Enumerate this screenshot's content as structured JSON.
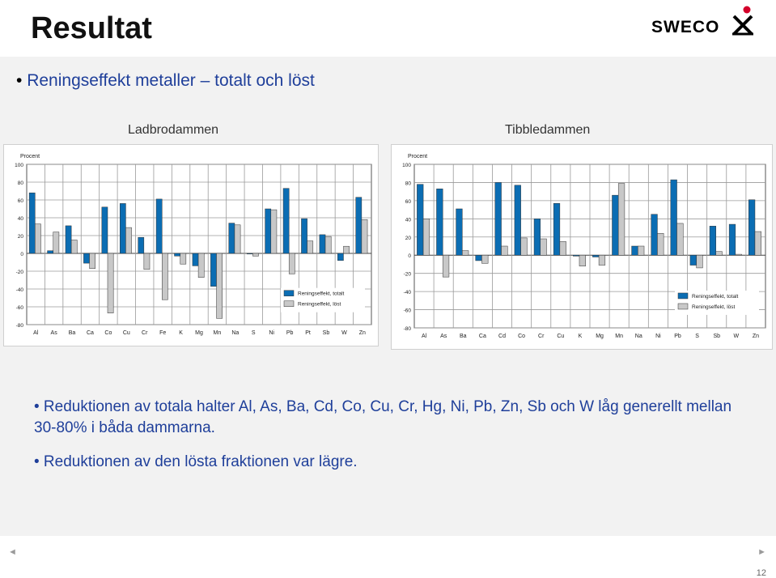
{
  "slide": {
    "title": "Resultat",
    "logo_text": "SWECO",
    "bullet_main": "Reningseffekt metaller – totalt och löst",
    "bullets": [
      "• Reduktionen av totala halter Al, As, Ba, Cd, Co, Cu, Cr, Hg, Ni, Pb, Zn, Sb och W låg generellt mellan 30-80% i båda dammarna.",
      "• Reduktionen av den lösta fraktionen var lägre."
    ],
    "page_number": "12",
    "nav_prev": "◄",
    "nav_next": "►"
  },
  "colors": {
    "total": "#0b6db3",
    "dissolved": "#c8c8c8",
    "text_blue": "#1f3f9a"
  },
  "chart_data": [
    {
      "type": "bar",
      "title": "Ladbrodammen",
      "ylabel": "Procent",
      "ylim": [
        -80,
        100
      ],
      "yticks": [
        100,
        80,
        60,
        40,
        20,
        0,
        -20,
        -40,
        -60,
        -80
      ],
      "grid": true,
      "legend_position": "bottom-right",
      "categories": [
        "Al",
        "As",
        "Ba",
        "Ca",
        "Co",
        "Cu",
        "Cr",
        "Fe",
        "K",
        "Mg",
        "Mn",
        "Na",
        "S",
        "Ni",
        "Pb",
        "Pt",
        "Sb",
        "W",
        "Zn"
      ],
      "series": [
        {
          "name": "Reningseffekt, totalt",
          "values": [
            68,
            3,
            31,
            -11,
            52,
            56,
            18,
            61,
            -3,
            -14,
            -37,
            34,
            0,
            50,
            73,
            39,
            21,
            -8,
            63
          ]
        },
        {
          "name": "Reningseffekt, löst",
          "values": [
            33,
            24,
            15,
            -17,
            -67,
            29,
            -18,
            -52,
            -12,
            -27,
            -73,
            32,
            -3,
            49,
            -23,
            14,
            19,
            8,
            38
          ]
        }
      ]
    },
    {
      "type": "bar",
      "title": "Tibbledammen",
      "ylabel": "Procent",
      "ylim": [
        -80,
        100
      ],
      "yticks": [
        100,
        80,
        60,
        40,
        20,
        0,
        -20,
        -40,
        -60,
        -80
      ],
      "grid": true,
      "legend_position": "bottom-right",
      "categories": [
        "Al",
        "As",
        "Ba",
        "Ca",
        "Cd",
        "Co",
        "Cr",
        "Cu",
        "K",
        "Mg",
        "Mn",
        "Na",
        "Ni",
        "Pb",
        "S",
        "Sb",
        "W",
        "Zn"
      ],
      "series": [
        {
          "name": "Reningseffekt, totalt",
          "values": [
            78,
            73,
            51,
            -6,
            80,
            77,
            40,
            57,
            -1,
            -2,
            66,
            10,
            45,
            83,
            -11,
            32,
            34,
            61
          ]
        },
        {
          "name": "Reningseffekt, löst",
          "values": [
            40,
            -24,
            5,
            -9,
            10,
            19,
            18,
            15,
            -12,
            -11,
            79,
            10,
            24,
            35,
            -14,
            4,
            1,
            26
          ]
        }
      ]
    }
  ]
}
